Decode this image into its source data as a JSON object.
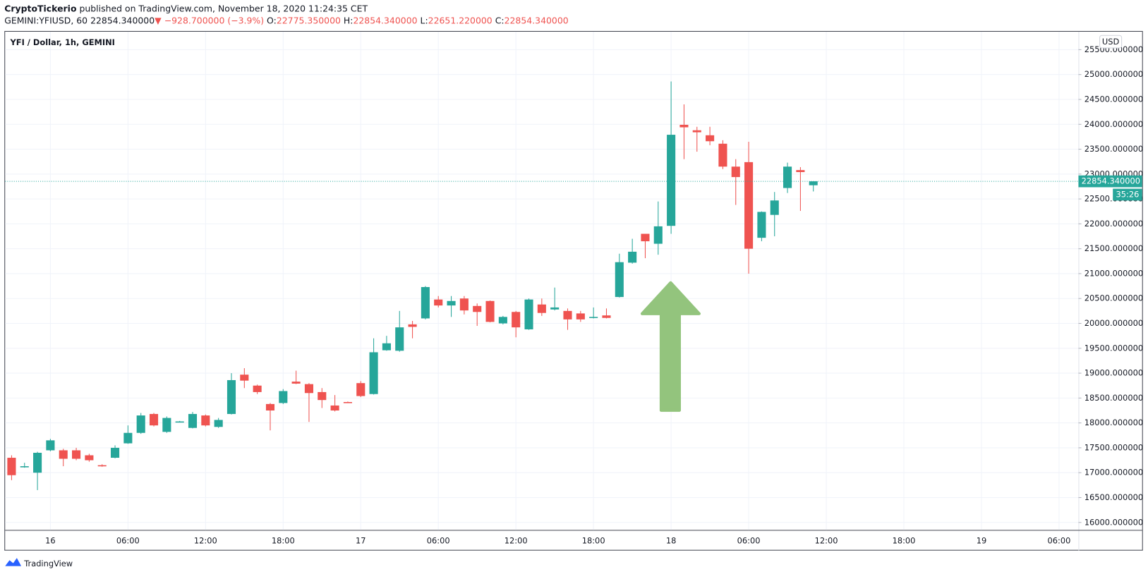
{
  "header": {
    "author": "CryptoTickerio",
    "published": "published on TradingView.com, November 18, 2020 11:24:35 CET",
    "symbol": "GEMINI:YFIUSD, 60",
    "price": "22854.340000",
    "direction": "▼",
    "change": "−928.700000 (−3.9%)",
    "ohlc": [
      {
        "label": "O:",
        "value": "22775.350000"
      },
      {
        "label": "H:",
        "value": "22854.340000"
      },
      {
        "label": "L:",
        "value": "22651.220000"
      },
      {
        "label": "C:",
        "value": "22854.340000"
      }
    ]
  },
  "footer": {
    "brand": "TradingView"
  },
  "chart_data": {
    "type": "candlestick",
    "title": "YFI / Dollar, 1h, GEMINI",
    "currency": "USD",
    "up_color": "#26a69a",
    "down_color": "#ef5350",
    "grid": true,
    "categories": [
      null,
      null,
      null,
      "16",
      null,
      null,
      null,
      null,
      null,
      "06:00",
      null,
      null,
      null,
      null,
      null,
      "12:00",
      null,
      null,
      null,
      null,
      null,
      "18:00",
      null,
      null,
      null,
      null,
      null,
      "17",
      null,
      null,
      null,
      null,
      null,
      "06:00",
      null,
      null,
      null,
      null,
      null,
      "12:00",
      null,
      null,
      null,
      null,
      null,
      "18:00",
      null,
      null,
      null,
      null,
      null,
      "18",
      null,
      null,
      null,
      null,
      null,
      "06:00",
      null,
      null,
      null,
      null,
      null,
      "12:00",
      null,
      null,
      null,
      null,
      null,
      "18:00",
      null,
      null,
      null,
      null,
      null,
      "19",
      null,
      null,
      null,
      null,
      null,
      "06:00",
      null
    ],
    "open": [
      17300,
      17120,
      17000,
      17450,
      17450,
      17450,
      17350,
      17150,
      17300,
      17590,
      17800,
      18180,
      17820,
      18020,
      17900,
      18150,
      17920,
      18180,
      18970,
      18750,
      18380,
      18400,
      18830,
      18780,
      18620,
      18350,
      18420,
      18800,
      18580,
      19460,
      19450,
      19980,
      20100,
      20480,
      20360,
      20500,
      20350,
      20450,
      20000,
      20230,
      19880,
      20380,
      20280,
      20250,
      20200,
      20110,
      20160,
      20530,
      21220,
      21800,
      21600,
      21960,
      23990,
      23880,
      23780,
      23610,
      23150,
      23240,
      21720,
      22180,
      22720,
      23080,
      22775.35,
      null,
      null,
      null,
      null,
      null,
      null,
      null,
      null,
      null,
      null,
      null,
      null,
      null,
      null,
      null,
      null,
      null,
      null,
      null,
      null
    ],
    "high": [
      17350,
      17200,
      17420,
      17680,
      17480,
      17500,
      17380,
      17170,
      17550,
      17950,
      18200,
      18200,
      18130,
      18040,
      18220,
      18170,
      18100,
      19000,
      19100,
      18770,
      18400,
      18680,
      19050,
      18800,
      18700,
      18560,
      18430,
      18840,
      19700,
      19750,
      20250,
      20050,
      20750,
      20550,
      20550,
      20550,
      20400,
      20460,
      20150,
      20250,
      20500,
      20500,
      20720,
      20300,
      20250,
      20320,
      20300,
      21400,
      21700,
      21800,
      22450,
      24860,
      24400,
      23950,
      23950,
      23680,
      23300,
      23650,
      22250,
      22640,
      23230,
      23140,
      22854.34,
      null,
      null,
      null,
      null,
      null,
      null,
      null,
      null,
      null,
      null,
      null,
      null,
      null,
      null,
      null,
      null,
      null,
      null,
      null,
      null
    ],
    "low": [
      16850,
      17100,
      16650,
      17430,
      17130,
      17250,
      17220,
      17120,
      17290,
      17580,
      17780,
      17930,
      17800,
      18010,
      17890,
      17930,
      17900,
      18170,
      18700,
      18580,
      17850,
      18380,
      18780,
      18020,
      18300,
      18230,
      18400,
      18520,
      18570,
      19450,
      19430,
      19700,
      20080,
      20320,
      20130,
      20180,
      19950,
      20020,
      19980,
      19720,
      19870,
      20150,
      20260,
      19870,
      20030,
      20100,
      20100,
      20520,
      21200,
      21310,
      21380,
      21800,
      23300,
      23450,
      23580,
      23100,
      22380,
      21000,
      21650,
      21750,
      22620,
      22260,
      22651.22,
      null,
      null,
      null,
      null,
      null,
      null,
      null,
      null,
      null,
      null,
      null,
      null,
      null,
      null,
      null,
      null,
      null,
      null,
      null,
      null
    ],
    "close": [
      16950,
      17130,
      17400,
      17650,
      17280,
      17280,
      17250,
      17130,
      17500,
      17800,
      18150,
      17950,
      18100,
      18030,
      18180,
      17950,
      18060,
      18860,
      18850,
      18620,
      18250,
      18640,
      18790,
      18600,
      18460,
      18250,
      18410,
      18540,
      19420,
      19600,
      19920,
      19930,
      20730,
      20360,
      20450,
      20260,
      20230,
      20030,
      20130,
      19920,
      20480,
      20210,
      20320,
      20080,
      20080,
      20130,
      20110,
      21230,
      21440,
      21650,
      21950,
      23790,
      23940,
      23840,
      23660,
      23150,
      22940,
      21500,
      22240,
      22470,
      23150,
      23040,
      22854.34,
      null,
      null,
      null,
      null,
      null,
      null,
      null,
      null,
      null,
      null,
      null,
      null,
      null,
      null,
      null,
      null,
      null,
      null,
      null,
      null
    ],
    "ylim": [
      15850,
      25860
    ],
    "yticks": [
      {
        "value": 16000,
        "label": "16000.000000"
      },
      {
        "value": 16500,
        "label": "16500.000000"
      },
      {
        "value": 17000,
        "label": "17000.000000"
      },
      {
        "value": 17500,
        "label": "17500.000000"
      },
      {
        "value": 18000,
        "label": "18000.000000"
      },
      {
        "value": 18500,
        "label": "18500.000000"
      },
      {
        "value": 19000,
        "label": "19000.000000"
      },
      {
        "value": 19500,
        "label": "19500.000000"
      },
      {
        "value": 20000,
        "label": "20000.000000"
      },
      {
        "value": 20500,
        "label": "20500.000000"
      },
      {
        "value": 21000,
        "label": "21000.000000"
      },
      {
        "value": 21500,
        "label": "21500.000000"
      },
      {
        "value": 22000,
        "label": "22000.000000"
      },
      {
        "value": 22500,
        "label": "22500.000000"
      },
      {
        "value": 23000,
        "label": "23000.000000"
      },
      {
        "value": 23500,
        "label": "23500.000000"
      },
      {
        "value": 24000,
        "label": "24000.000000"
      },
      {
        "value": 24500,
        "label": "24500.000000"
      },
      {
        "value": 25000,
        "label": "25000.000000"
      },
      {
        "value": 25500,
        "label": "25500.000000"
      }
    ],
    "last_price": {
      "value": 22854.34,
      "label": "22854.340000"
    },
    "countdown": "35:26"
  }
}
